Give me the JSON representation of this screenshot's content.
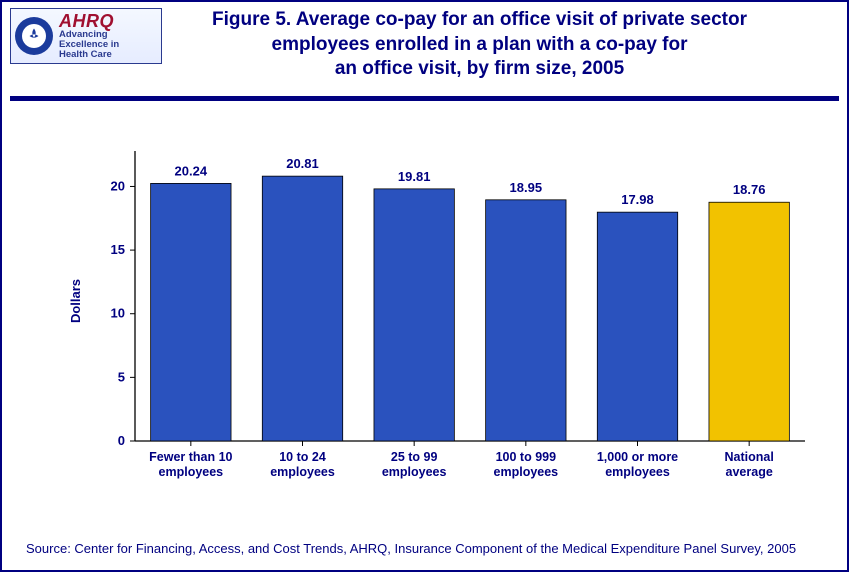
{
  "logo": {
    "brand_main": "AHRQ",
    "brand_sub_line1": "Advancing",
    "brand_sub_line2": "Excellence in",
    "brand_sub_line3": "Health Care"
  },
  "title": {
    "line1": "Figure 5. Average co-pay for an office visit of private sector",
    "line2": "employees enrolled in a plan with a co-pay for",
    "line3": "an office visit, by firm size, 2005"
  },
  "chart": {
    "type": "bar",
    "ylabel": "Dollars",
    "categories": [
      [
        "Fewer than 10",
        "employees"
      ],
      [
        "10 to 24",
        "employees"
      ],
      [
        "25 to 99",
        "employees"
      ],
      [
        "100 to 999",
        "employees"
      ],
      [
        "1,000 or more",
        "employees"
      ],
      [
        "National",
        "average"
      ]
    ],
    "values": [
      20.24,
      20.81,
      19.81,
      18.95,
      17.98,
      18.76
    ],
    "value_labels": [
      "20.24",
      "20.81",
      "19.81",
      "18.95",
      "17.98",
      "18.76"
    ],
    "bar_colors": [
      "#2a52be",
      "#2a52be",
      "#2a52be",
      "#2a52be",
      "#2a52be",
      "#f2c200"
    ],
    "bar_border": "#000000",
    "ylim": [
      0,
      22
    ],
    "yticks": [
      0,
      5,
      10,
      15,
      20
    ],
    "ytick_labels": [
      "0",
      "5",
      "10",
      "15",
      "20"
    ],
    "axis_color": "#000000",
    "tick_color": "#000000",
    "text_color": "#000080",
    "value_label_fontsize": 13,
    "tick_label_fontsize": 13,
    "category_label_fontsize": 12.5,
    "ylabel_fontsize": 13,
    "title_fontsize": 19,
    "bar_width_ratio": 0.72,
    "background_color": "#ffffff"
  },
  "source": "Source: Center for Financing, Access, and Cost Trends, AHRQ, Insurance Component of the Medical Expenditure Panel Survey, 2005"
}
